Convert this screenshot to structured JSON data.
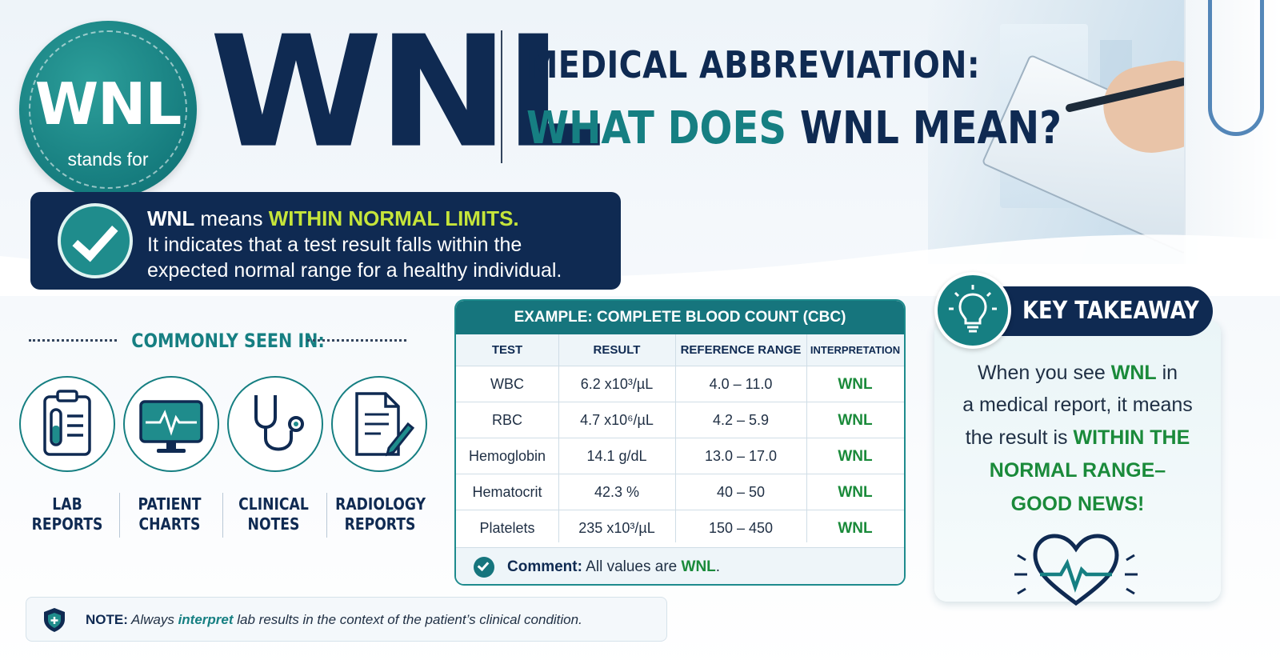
{
  "badge": {
    "abbr": "WNL",
    "caption": "stands for"
  },
  "headline": {
    "big": "WNL",
    "line1": "MEDICAL ABBREVIATION:",
    "line2_prefix": "WHAT DOES ",
    "line2_abbr": "WNL",
    "line2_suffix": " MEAN?"
  },
  "definition": {
    "abbr": "WNL",
    "means": " means ",
    "expansion": "WITHIN NORMAL LIMITS.",
    "line2": "It indicates that a test result falls within the",
    "line3": "expected normal range for a healthy individual."
  },
  "commonly_seen": {
    "title": "COMMONLY SEEN IN:",
    "items": [
      {
        "line1": "LAB",
        "line2": "REPORTS",
        "icon": "clipboard-test-tube-icon"
      },
      {
        "line1": "PATIENT",
        "line2": "CHARTS",
        "icon": "monitor-heartbeat-icon"
      },
      {
        "line1": "CLINICAL",
        "line2": "NOTES",
        "icon": "stethoscope-icon"
      },
      {
        "line1": "RADIOLOGY",
        "line2": "REPORTS",
        "icon": "document-pen-icon"
      }
    ]
  },
  "table": {
    "title": "EXAMPLE: COMPLETE BLOOD COUNT (CBC)",
    "columns": [
      "TEST",
      "RESULT",
      "REFERENCE RANGE",
      "INTERPRETATION"
    ],
    "rows": [
      {
        "test": "WBC",
        "result": "6.2 x10³/µL",
        "range": "4.0 – 11.0",
        "interp": "WNL"
      },
      {
        "test": "RBC",
        "result": "4.7 x10⁶/µL",
        "range": "4.2 – 5.9",
        "interp": "WNL"
      },
      {
        "test": "Hemoglobin",
        "result": "14.1 g/dL",
        "range": "13.0 – 17.0",
        "interp": "WNL"
      },
      {
        "test": "Hematocrit",
        "result": "42.3 %",
        "range": "40 – 50",
        "interp": "WNL"
      },
      {
        "test": "Platelets",
        "result": "235 x10³/µL",
        "range": "150 – 450",
        "interp": "WNL"
      }
    ],
    "comment_label": "Comment:",
    "comment_text": " All values are ",
    "comment_value": "WNL",
    "comment_end": "."
  },
  "takeaway": {
    "title": "KEY TAKEAWAY",
    "l1_pre": "When you see ",
    "l1_abbr": "WNL",
    "l1_post": " in",
    "l2": "a medical report, it means",
    "l3_pre": "the result is ",
    "l3_hl": "WITHIN THE",
    "l4": "NORMAL RANGE–",
    "l5": "GOOD NEWS!"
  },
  "note": {
    "label": "NOTE:",
    "pre": " Always ",
    "hl": "interpret",
    "post": " lab results in the context of the patient’s clinical condition."
  },
  "colors": {
    "navy": "#0f2a52",
    "teal": "#167f82",
    "green": "#1a8a3a",
    "lime": "#c6e53a"
  }
}
